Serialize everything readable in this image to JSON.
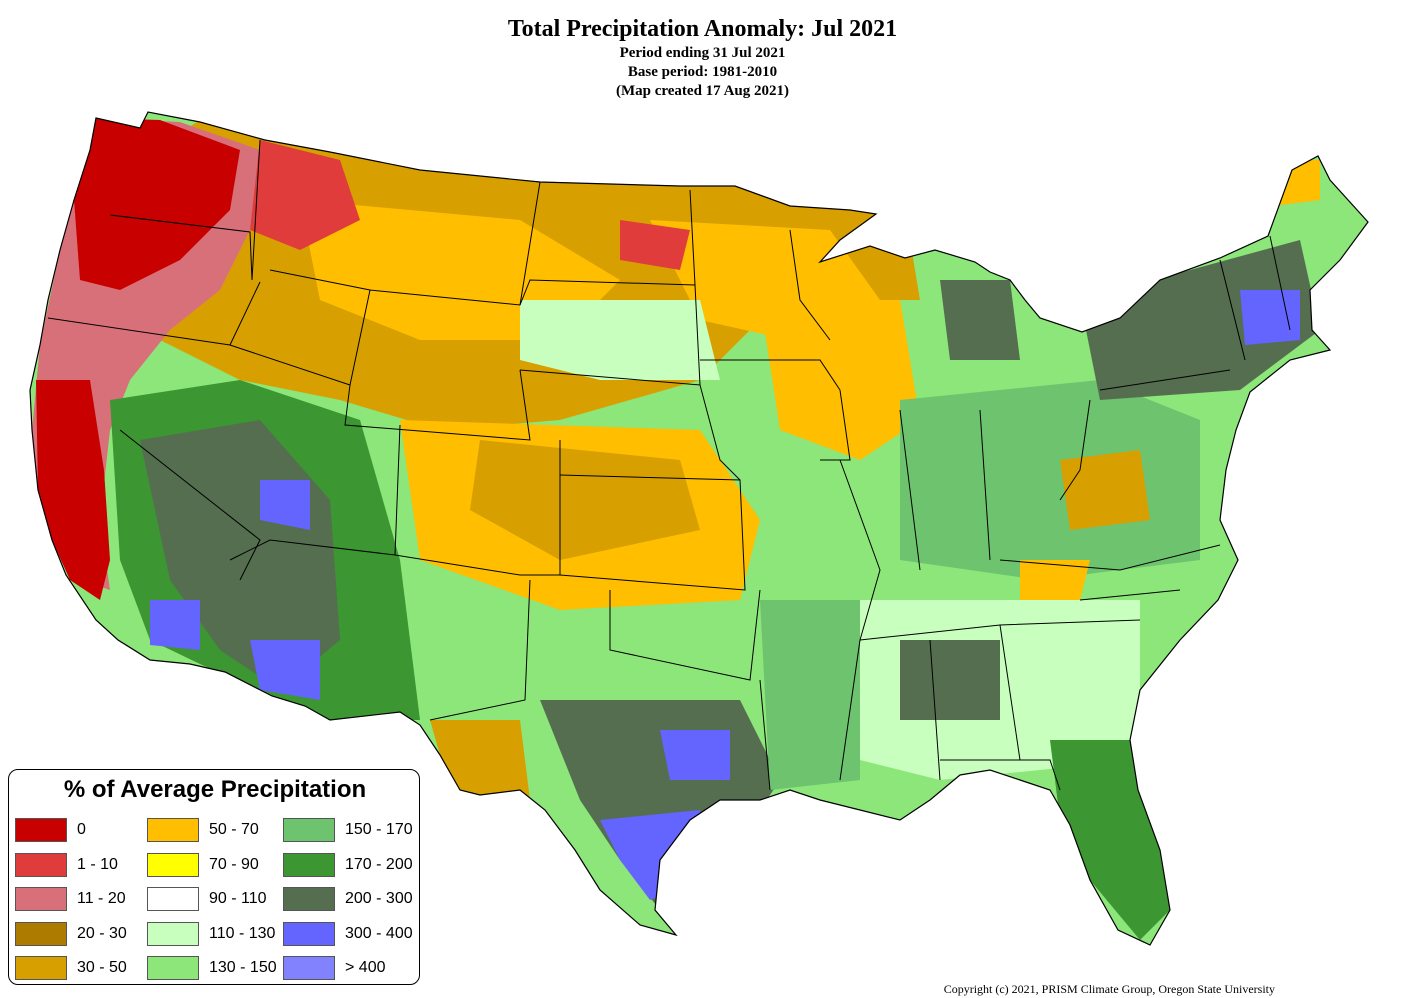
{
  "title": "Total Precipitation Anomaly: Jul 2021",
  "subtitle_lines": [
    "Period ending 31 Jul 2021",
    "Base period: 1981-2010",
    "(Map created 17 Aug 2021)"
  ],
  "legend": {
    "title": "% of Average Precipitation",
    "items": [
      {
        "label": "0",
        "color": "#c80000"
      },
      {
        "label": "1 - 10",
        "color": "#e03c3c"
      },
      {
        "label": "11 - 20",
        "color": "#d8707a"
      },
      {
        "label": "20 - 30",
        "color": "#ad7b00"
      },
      {
        "label": "30 - 50",
        "color": "#d7a000"
      },
      {
        "label": "50 - 70",
        "color": "#ffbe00"
      },
      {
        "label": "70 - 90",
        "color": "#ffff00"
      },
      {
        "label": "90 - 110",
        "color": "#ffffff"
      },
      {
        "label": "110 - 130",
        "color": "#c8ffbe"
      },
      {
        "label": "130 - 150",
        "color": "#8ce67a"
      },
      {
        "label": "150 - 170",
        "color": "#6ec36e"
      },
      {
        "label": "170 - 200",
        "color": "#3c9632"
      },
      {
        "label": "200 - 300",
        "color": "#556e50"
      },
      {
        "label": "300 - 400",
        "color": "#6464ff"
      },
      {
        "label": "> 400",
        "color": "#8282ff"
      }
    ]
  },
  "copyright": "Copyright (c) 2021, PRISM Climate Group, Oregon State University"
}
